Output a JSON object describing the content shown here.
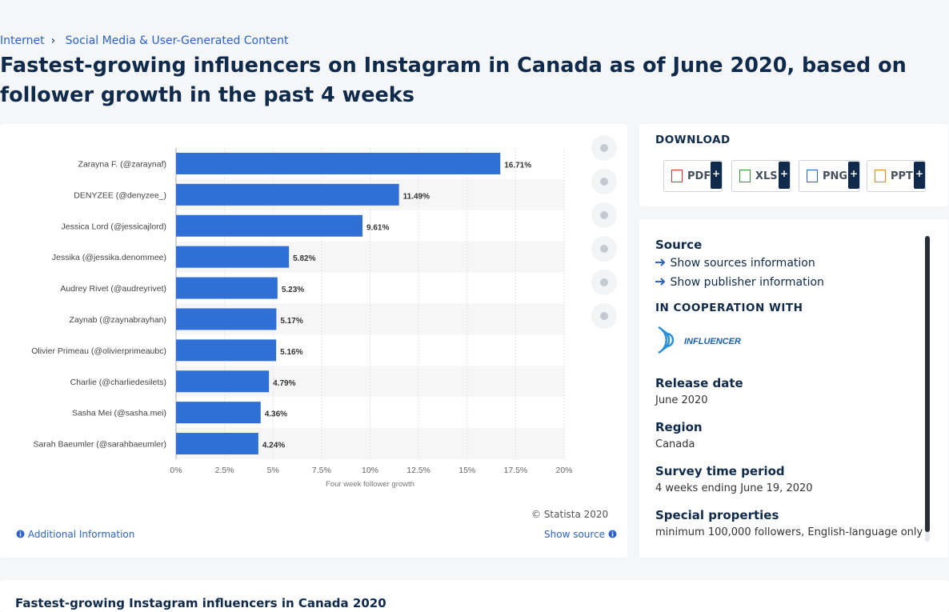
{
  "breadcrumb": [
    "Internet",
    "Social Media & User-Generated Content"
  ],
  "title": "Fastest-growing influencers on Instagram in Canada as of June 2020, based on follower growth in the past 4 weeks",
  "chart_data": {
    "type": "bar",
    "orientation": "horizontal",
    "categories": [
      "Zarayna F. (@zaraynaf)",
      "DENYZEE (@denyzee_)",
      "Jessica Lord (@jessicajlord)",
      "Jessika (@jessika.denommee)",
      "Audrey Rivet (@audreyrivet)",
      "Zaynab (@zaynabrayhan)",
      "Olivier Primeau (@olivierprimeaubc)",
      "Charlie (@charliedesilets)",
      "Sasha Mei (@sasha.mei)",
      "Sarah Baeumler (@sarahbaeumler)"
    ],
    "values": [
      16.71,
      11.49,
      9.61,
      5.82,
      5.23,
      5.17,
      5.16,
      4.79,
      4.36,
      4.24
    ],
    "value_labels": [
      "16.71%",
      "11.49%",
      "9.61%",
      "5.82%",
      "5.23%",
      "5.17%",
      "5.16%",
      "4.79%",
      "4.36%",
      "4.24%"
    ],
    "color": "#2f6fd6",
    "xlabel": "Four week follower growth",
    "xlim": [
      0,
      20
    ],
    "xticks": [
      {
        "value": 0,
        "label": "0%"
      },
      {
        "value": 2.5,
        "label": "2.5%"
      },
      {
        "value": 5,
        "label": "5%"
      },
      {
        "value": 7.5,
        "label": "7.5%"
      },
      {
        "value": 10,
        "label": "10%"
      },
      {
        "value": 12.5,
        "label": "12.5%"
      },
      {
        "value": 15,
        "label": "15%"
      },
      {
        "value": 17.5,
        "label": "17.5%"
      },
      {
        "value": 20,
        "label": "20%"
      }
    ],
    "grid": true
  },
  "copyright": "© Statista 2020",
  "additional_information": "Additional Information",
  "show_source": "Show source",
  "download": {
    "heading": "DOWNLOAD",
    "formats": [
      "PDF",
      "XLS",
      "PNG",
      "PPT"
    ],
    "add_symbol": "+"
  },
  "sidebar": {
    "source_heading": "Source",
    "show_sources": "Show sources information",
    "show_publisher": "Show publisher information",
    "cooperation_heading": "IN COOPERATION WITH",
    "logo_text": "INFLUENCER",
    "fields": [
      {
        "label": "Release date",
        "value": "June 2020"
      },
      {
        "label": "Region",
        "value": "Canada"
      },
      {
        "label": "Survey time period",
        "value": "4 weeks ending June 19, 2020"
      },
      {
        "label": "Special properties",
        "value": "minimum 100,000 followers, English-language only"
      }
    ]
  },
  "related_title": "Fastest-growing Instagram influencers in Canada 2020"
}
